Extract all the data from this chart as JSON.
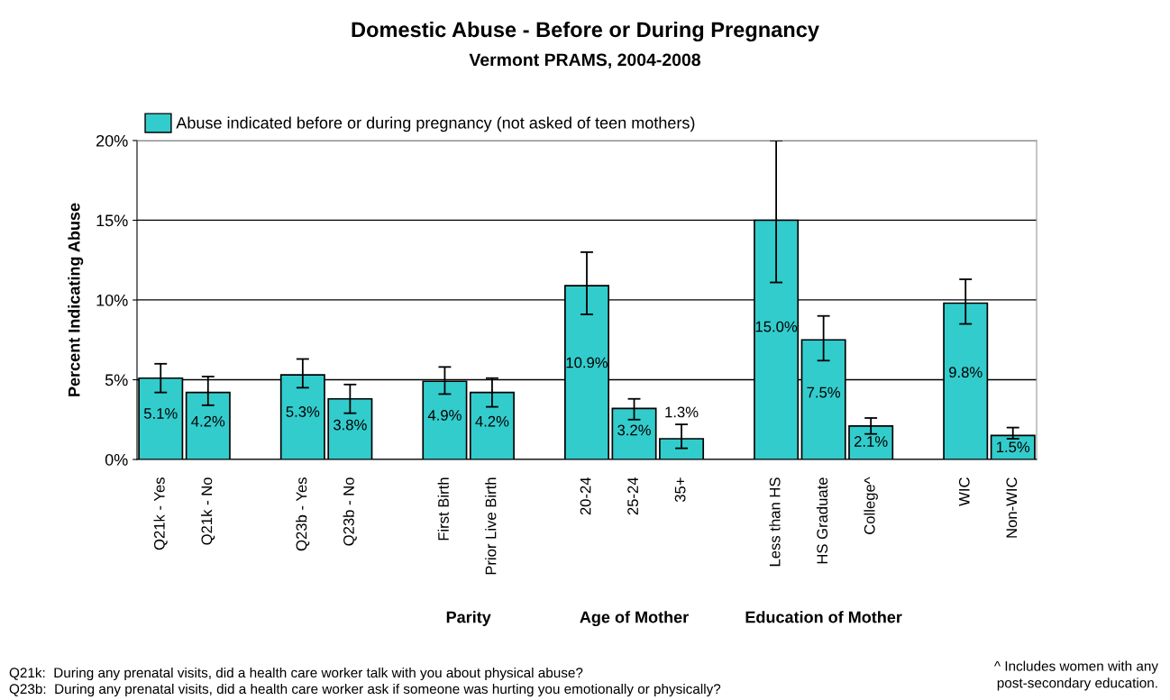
{
  "chart_data": {
    "type": "bar",
    "title": "Domestic Abuse - Before or During Pregnancy",
    "subtitle": "Vermont PRAMS, 2004-2008",
    "ylabel": "Percent Indicating Abuse",
    "categories": [
      "Q21k - Yes",
      "Q21k - No",
      null,
      "Q23b - Yes",
      "Q23b - No",
      null,
      "First Birth",
      "Prior Live Birth",
      null,
      "20-24",
      "25-24",
      "35+",
      null,
      "Less than HS",
      "HS Graduate",
      "College^",
      null,
      "WIC",
      "Non-WIC"
    ],
    "series": [
      {
        "name": "Abuse indicated before or during pregnancy (not asked of teen mothers)",
        "color": "#33cccc",
        "values": [
          5.1,
          4.2,
          null,
          5.3,
          3.8,
          null,
          4.9,
          4.2,
          null,
          10.9,
          3.2,
          1.3,
          null,
          15.0,
          7.5,
          2.1,
          null,
          9.8,
          1.5
        ],
        "errors": [
          [
            4.2,
            6.0
          ],
          [
            3.4,
            5.2
          ],
          null,
          [
            4.5,
            6.3
          ],
          [
            2.9,
            4.7
          ],
          null,
          [
            4.1,
            5.8
          ],
          [
            3.3,
            5.1
          ],
          null,
          [
            9.1,
            13.0
          ],
          [
            2.5,
            3.8
          ],
          [
            0.7,
            2.2
          ],
          null,
          [
            11.1,
            20.0
          ],
          [
            6.2,
            9.0
          ],
          [
            1.6,
            2.6
          ],
          null,
          [
            8.5,
            11.3
          ],
          [
            1.3,
            2.0
          ]
        ],
        "value_labels": [
          "5.1%",
          "4.2%",
          null,
          "5.3%",
          "3.8%",
          null,
          "4.9%",
          "4.2%",
          null,
          "10.9%",
          "3.2%",
          "1.3%",
          null,
          "15.0%",
          "7.5%",
          "2.1%",
          null,
          "9.8%",
          "1.5%"
        ]
      }
    ],
    "ylim": [
      0,
      20
    ],
    "yticks": [
      {
        "value": 0,
        "label": "0%"
      },
      {
        "value": 5,
        "label": "5%"
      },
      {
        "value": 10,
        "label": "10%"
      },
      {
        "value": 15,
        "label": "15%"
      },
      {
        "value": 20,
        "label": "20%"
      }
    ],
    "grid": "y",
    "legend": "top left",
    "annotations": [
      "Parity",
      "Age of Mother",
      "Education of Mother",
      "Q21k:  During any prenatal visits, did a health care worker talk with you about physical abuse?",
      "Q23b:  During any prenatal visits, did a health care worker ask if someone was hurting you emotionally or physically?",
      "^ Includes women with any\npost-secondary education."
    ]
  }
}
